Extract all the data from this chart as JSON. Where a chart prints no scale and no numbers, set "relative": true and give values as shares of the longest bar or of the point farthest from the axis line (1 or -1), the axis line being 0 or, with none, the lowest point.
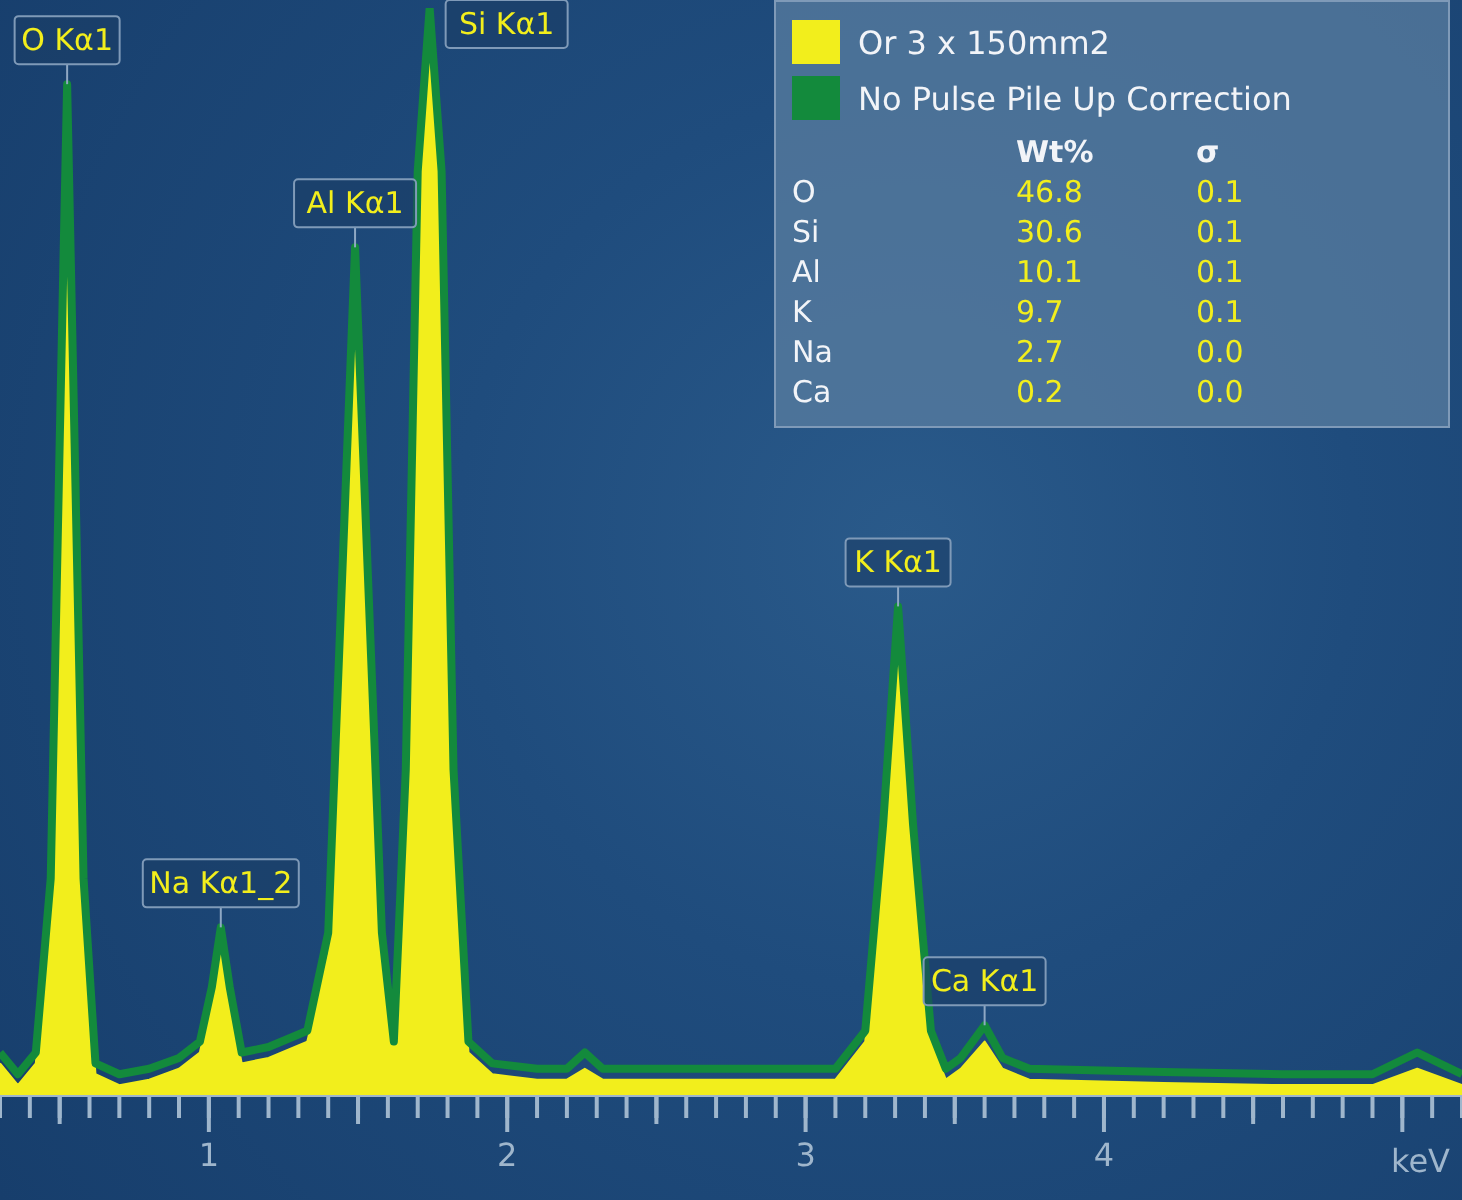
{
  "chart_data": {
    "type": "area",
    "relative": true,
    "xlabel": "keV",
    "legend": "top right",
    "x": [
      0.3,
      0.36,
      0.42,
      0.47,
      0.5,
      0.525,
      0.55,
      0.58,
      0.62,
      0.7,
      0.8,
      0.9,
      0.97,
      1.01,
      1.04,
      1.07,
      1.11,
      1.2,
      1.33,
      1.4,
      1.45,
      1.49,
      1.53,
      1.58,
      1.62,
      1.66,
      1.7,
      1.74,
      1.78,
      1.82,
      1.87,
      1.95,
      2.1,
      2.2,
      2.26,
      2.32,
      2.5,
      2.8,
      3.1,
      3.2,
      3.26,
      3.31,
      3.36,
      3.42,
      3.47,
      3.52,
      3.6,
      3.66,
      3.75,
      4.2,
      4.6,
      4.9,
      5.05,
      5.2
    ],
    "series": [
      {
        "name": "Or 3 x 150mm2",
        "color": "#f2ee1c",
        "values": [
          0.03,
          0.01,
          0.03,
          0.18,
          0.56,
          0.88,
          0.56,
          0.18,
          0.02,
          0.01,
          0.015,
          0.025,
          0.04,
          0.09,
          0.14,
          0.09,
          0.03,
          0.035,
          0.05,
          0.13,
          0.46,
          0.74,
          0.46,
          0.13,
          0.04,
          0.28,
          0.82,
          1,
          0.82,
          0.28,
          0.04,
          0.02,
          0.015,
          0.015,
          0.025,
          0.015,
          0.015,
          0.015,
          0.015,
          0.05,
          0.23,
          0.42,
          0.23,
          0.05,
          0.015,
          0.025,
          0.05,
          0.025,
          0.015,
          0.012,
          0.01,
          0.01,
          0.025,
          0.01
        ]
      },
      {
        "name": "No Pulse Pile Up Correction",
        "type": "line",
        "color": "#138a3c",
        "values": [
          0.04,
          0.02,
          0.04,
          0.2,
          0.6,
          0.93,
          0.6,
          0.2,
          0.03,
          0.02,
          0.025,
          0.035,
          0.05,
          0.1,
          0.155,
          0.1,
          0.04,
          0.045,
          0.06,
          0.15,
          0.5,
          0.78,
          0.5,
          0.15,
          0.05,
          0.3,
          0.85,
          1,
          0.85,
          0.3,
          0.05,
          0.03,
          0.025,
          0.025,
          0.04,
          0.025,
          0.025,
          0.025,
          0.025,
          0.06,
          0.25,
          0.45,
          0.25,
          0.06,
          0.025,
          0.035,
          0.065,
          0.035,
          0.025,
          0.022,
          0.02,
          0.02,
          0.04,
          0.02
        ]
      }
    ],
    "xlim": [
      0.3,
      5.2
    ],
    "xticks": [
      {
        "value": 0.3,
        "label": null
      },
      {
        "value": 0.4,
        "label": null
      },
      {
        "value": 0.5,
        "label": null
      },
      {
        "value": 0.6,
        "label": null
      },
      {
        "value": 0.7,
        "label": null
      },
      {
        "value": 0.8,
        "label": null
      },
      {
        "value": 0.9,
        "label": null
      },
      1,
      {
        "value": 1.1,
        "label": null
      },
      {
        "value": 1.2,
        "label": null
      },
      {
        "value": 1.3,
        "label": null
      },
      {
        "value": 1.4,
        "label": null
      },
      {
        "value": 1.5,
        "label": null
      },
      {
        "value": 1.6,
        "label": null
      },
      {
        "value": 1.7,
        "label": null
      },
      {
        "value": 1.8,
        "label": null
      },
      {
        "value": 1.9,
        "label": null
      },
      2,
      {
        "value": 2.1,
        "label": null
      },
      {
        "value": 2.2,
        "label": null
      },
      {
        "value": 2.3,
        "label": null
      },
      {
        "value": 2.4,
        "label": null
      },
      {
        "value": 2.5,
        "label": null
      },
      {
        "value": 2.6,
        "label": null
      },
      {
        "value": 2.7,
        "label": null
      },
      {
        "value": 2.8,
        "label": null
      },
      {
        "value": 2.9,
        "label": null
      },
      3,
      {
        "value": 3.1,
        "label": null
      },
      {
        "value": 3.2,
        "label": null
      },
      {
        "value": 3.3,
        "label": null
      },
      {
        "value": 3.4,
        "label": null
      },
      {
        "value": 3.5,
        "label": null
      },
      {
        "value": 3.6,
        "label": null
      },
      {
        "value": 3.7,
        "label": null
      },
      {
        "value": 3.8,
        "label": null
      },
      {
        "value": 3.9,
        "label": null
      },
      4,
      {
        "value": 4.1,
        "label": null
      },
      {
        "value": 4.2,
        "label": null
      },
      {
        "value": 4.3,
        "label": null
      },
      {
        "value": 4.4,
        "label": null
      },
      {
        "value": 4.5,
        "label": null
      },
      {
        "value": 4.6,
        "label": null
      },
      {
        "value": 4.7,
        "label": null
      },
      {
        "value": 4.8,
        "label": null
      },
      {
        "value": 4.9,
        "label": null
      },
      {
        "value": 5,
        "label": null
      },
      {
        "value": 5.1,
        "label": null
      },
      {
        "value": 5.2,
        "label": null
      }
    ],
    "annotations": [
      {
        "text": "O Kα1",
        "x": 0.525,
        "y": 0.93
      },
      {
        "text": "Si Kα1",
        "x": 1.74,
        "y": 1
      },
      {
        "text": "Al Kα1",
        "x": 1.49,
        "y": 0.78
      },
      {
        "text": "Na Kα1_2",
        "x": 1.04,
        "y": 0.155
      },
      {
        "text": "K Kα1",
        "x": 3.31,
        "y": 0.45
      },
      {
        "text": "Ca Kα1",
        "x": 3.6,
        "y": 0.065
      },
      "Wt%",
      "σ",
      "O",
      "46.8",
      "0.1",
      "Si",
      "30.6",
      "0.1",
      "Al",
      "10.1",
      "0.1",
      "K",
      "9.7",
      "0.1",
      "Na",
      "2.7",
      "0.0",
      "Ca",
      "0.2",
      "0.0"
    ]
  }
}
